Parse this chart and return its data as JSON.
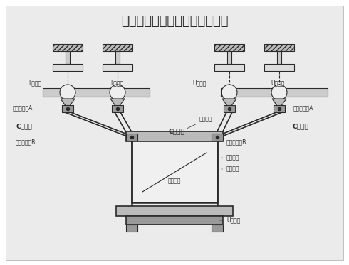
{
  "title": "矩形风管双侧向支撑（钢结构）",
  "bg_color": "#e8e8e8",
  "fig_bg": "#ffffff",
  "line_color": "#2a2a2a",
  "gray_fill": "#b0b0b0",
  "light_fill": "#d8d8d8",
  "white_fill": "#ffffff",
  "labels": {
    "L_clamp_left1": "L型夹夹",
    "L_clamp_left2": "L型夹夹",
    "U_clamp_right1": "U型夹夹",
    "U_clamp_right2": "U型夹夹",
    "anti_seismic_A_left": "抗震连接座A",
    "anti_seismic_A_right": "抗震连接座A",
    "C_channel_left": "C型槽钢",
    "C_channel_center": "C型槽钢",
    "C_channel_right": "C型槽钢",
    "reinforce": "加劲装置",
    "anti_seismic_B_left": "抗震连接座B",
    "anti_seismic_B_right": "抗震连接座B",
    "support_bolt": "支撑螺杆",
    "rect_duct": "矩形风管",
    "rubber_pad": "硅胶垫圈",
    "counterweight": "U形压块"
  },
  "xlim": [
    0,
    490
  ],
  "ylim": [
    0,
    373
  ]
}
